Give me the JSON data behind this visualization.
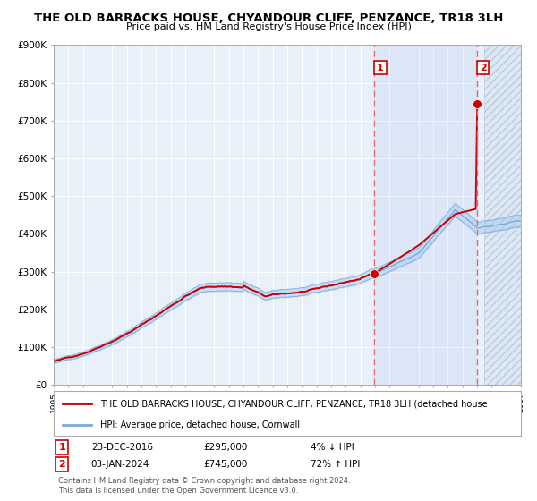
{
  "title": "THE OLD BARRACKS HOUSE, CHYANDOUR CLIFF, PENZANCE, TR18 3LH",
  "subtitle": "Price paid vs. HM Land Registry's House Price Index (HPI)",
  "legend_line1": "THE OLD BARRACKS HOUSE, CHYANDOUR CLIFF, PENZANCE, TR18 3LH (detached house",
  "legend_line2": "HPI: Average price, detached house, Cornwall",
  "annotation1_date": "23-DEC-2016",
  "annotation1_price": "£295,000",
  "annotation1_hpi": "4% ↓ HPI",
  "annotation2_date": "03-JAN-2024",
  "annotation2_price": "£745,000",
  "annotation2_hpi": "72% ↑ HPI",
  "footer": "Contains HM Land Registry data © Crown copyright and database right 2024.\nThis data is licensed under the Open Government Licence v3.0.",
  "sale1_x": 2016.97,
  "sale1_y": 295000,
  "sale2_x": 2024.01,
  "sale2_y": 745000,
  "ylim": [
    0,
    900000
  ],
  "xlim_start": 1995,
  "xlim_end": 2027,
  "plot_bg": "#e8f0fa",
  "grid_color": "#ffffff",
  "hpi_line_color": "#7aaadd",
  "hpi_fill_color": "#aaccee",
  "sale_line_color": "#cc0000",
  "dashed_line_color": "#ee6666",
  "dot_color": "#cc0000",
  "hatch_bg": "#dde8f5"
}
